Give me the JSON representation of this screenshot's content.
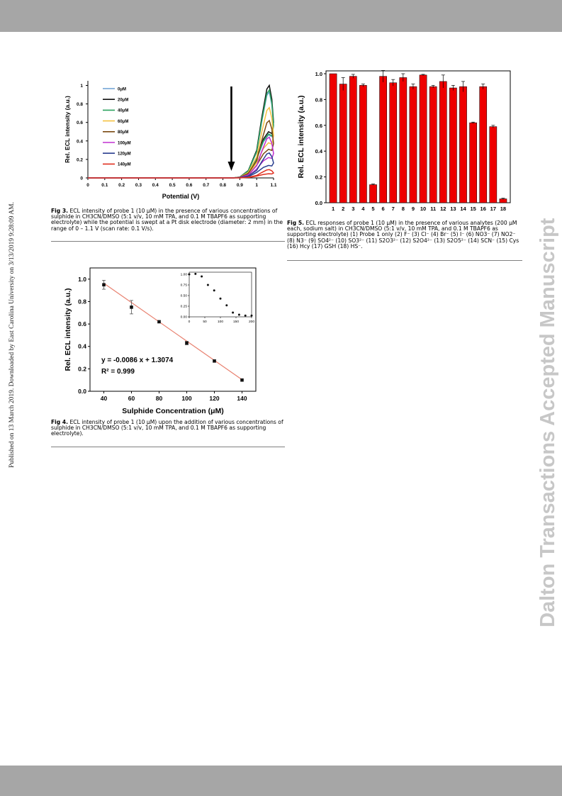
{
  "side_left": "Published on 13 March 2019. Downloaded by East Carolina University on 3/13/2019 9:28:09 AM.",
  "side_right": "Dalton Transactions Accepted Manuscript",
  "captions": {
    "fig3_label": "Fig 3.",
    "fig3_text": "ECL intensity of probe 1 (10 μM) in the presence of various concentrations of sulphide in CH3CN/DMSO (5:1 v/v, 10 mM TPA, and 0.1 M TBAPF6 as supporting electrolyte) while the potential is swept at a Pt disk electrode (diameter: 2 mm) in the range of 0 – 1.1 V (scan rate: 0.1 V/s).",
    "fig4_label": "Fig 4.",
    "fig4_text": "ECL intensity of probe 1 (10 μM) upon the addition of various concentrations of sulphide in CH3CN/DMSO (5:1 v/v, 10 mM TPA, and 0.1 M TBAPF6 as supporting electrolyte).",
    "fig5_label": "Fig 5.",
    "fig5_text": "ECL responses of probe 1 (10 μM) in the presence of various analytes (200 μM each, sodium salt) in CH3CN/DMSO (5:1 v/v, 10 mM TPA, and 0.1 M TBAPF6 as supporting electrolyte) (1) Probe 1 only (2) F⁻ (3) Cl⁻ (4) Br⁻ (5) I⁻ (6) NO3⁻ (7) NO2⁻ (8) N3⁻ (9) SO4²⁻ (10) SO3²⁻ (11) S2O3²⁻ (12) S2O4²⁻ (13) S2O5²⁻ (14) SCN⁻ (15) Cys (16) Hcy (17) GSH (18) HS⁻."
  },
  "chart_data": [
    {
      "id": "fig3",
      "type": "line",
      "xlabel": "Potential (V)",
      "ylabel": "Rel. ECL intensity (a.u.)",
      "xlim": [
        0,
        1.1
      ],
      "ylim": [
        0,
        1.05
      ],
      "xticks": [
        "0",
        "0.1",
        "0.2",
        "0.3",
        "0.4",
        "0.5",
        "0.6",
        "0.7",
        "0.8",
        "0.9",
        "1",
        "1.1"
      ],
      "yticks": [
        "0",
        "0.2",
        "0.4",
        "0.6",
        "0.8",
        "1"
      ],
      "annotation": "downward arrow at ~0.85 V indicating decreasing intensity with sulphide",
      "series": [
        {
          "name": "0μM",
          "color": "#6a9fd4",
          "peak": 0.93
        },
        {
          "name": "20μM",
          "color": "#111111",
          "peak": 1.0
        },
        {
          "name": "40μM",
          "color": "#2ca25f",
          "peak": 0.95
        },
        {
          "name": "60μM",
          "color": "#f5c242",
          "peak": 0.76
        },
        {
          "name": "80μM",
          "color": "#7b4a12",
          "peak": 0.62
        },
        {
          "name": "100μM",
          "color": "#c030d0",
          "peak": 0.44
        },
        {
          "name": "120μM",
          "color": "#2a3f8f",
          "peak": 0.27
        },
        {
          "name": "140μM",
          "color": "#e03020",
          "peak": 0.09
        }
      ]
    },
    {
      "id": "fig4",
      "type": "scatter",
      "xlabel": "Sulphide Concentration (μM)",
      "ylabel": "Rel. ECL intensity (a.u.)",
      "xlim": [
        30,
        150
      ],
      "ylim": [
        0,
        1.1
      ],
      "xticks": [
        "40",
        "60",
        "80",
        "100",
        "120",
        "140"
      ],
      "yticks": [
        "0.0",
        "0.2",
        "0.4",
        "0.6",
        "0.8",
        "1.0"
      ],
      "equation": "y = -0.0086 x + 1.3074",
      "r2": "R² = 0.999",
      "points": [
        {
          "x": 40,
          "y": 0.95,
          "err": 0.04
        },
        {
          "x": 60,
          "y": 0.75,
          "err": 0.06
        },
        {
          "x": 80,
          "y": 0.62,
          "err": 0.01
        },
        {
          "x": 100,
          "y": 0.43,
          "err": 0.015
        },
        {
          "x": 120,
          "y": 0.27,
          "err": 0.01
        },
        {
          "x": 140,
          "y": 0.1,
          "err": 0.005
        }
      ],
      "fit": {
        "slope": -0.0086,
        "intercept": 1.3074,
        "x0": 40,
        "x1": 140
      },
      "inset": {
        "xlim": [
          0,
          200
        ],
        "ylim": [
          0,
          1.05
        ],
        "xticks": [
          "0",
          "50",
          "100",
          "150",
          "200"
        ],
        "yticks": [
          "0.00",
          "0.25",
          "0.50",
          "0.75",
          "1.00"
        ],
        "points": [
          {
            "x": 0,
            "y": 1.0
          },
          {
            "x": 20,
            "y": 1.01
          },
          {
            "x": 40,
            "y": 0.95
          },
          {
            "x": 60,
            "y": 0.75
          },
          {
            "x": 80,
            "y": 0.62
          },
          {
            "x": 100,
            "y": 0.43
          },
          {
            "x": 120,
            "y": 0.27
          },
          {
            "x": 140,
            "y": 0.1
          },
          {
            "x": 160,
            "y": 0.05
          },
          {
            "x": 180,
            "y": 0.03
          },
          {
            "x": 200,
            "y": 0.03
          }
        ]
      }
    },
    {
      "id": "fig5",
      "type": "bar",
      "xlabel": "",
      "ylabel": "Rel. ECL intensity (a.u.)",
      "ylim": [
        0,
        1.0
      ],
      "yticks": [
        "0.0",
        "0.2",
        "0.4",
        "0.6",
        "0.8",
        "1.0"
      ],
      "bar_color": "#ee0000",
      "categories": [
        "1",
        "2",
        "3",
        "4",
        "5",
        "6",
        "7",
        "8",
        "9",
        "10",
        "11",
        "12",
        "13",
        "14",
        "15",
        "16",
        "17",
        "18"
      ],
      "values": [
        1.0,
        0.92,
        0.98,
        0.91,
        0.14,
        0.98,
        0.93,
        0.97,
        0.9,
        0.99,
        0.9,
        0.94,
        0.89,
        0.9,
        0.62,
        0.9,
        0.59,
        0.03
      ],
      "errors": [
        0.0,
        0.05,
        0.015,
        0.01,
        0.005,
        0.045,
        0.025,
        0.03,
        0.02,
        0.005,
        0.01,
        0.05,
        0.02,
        0.04,
        0.005,
        0.02,
        0.01,
        0.005
      ]
    }
  ]
}
